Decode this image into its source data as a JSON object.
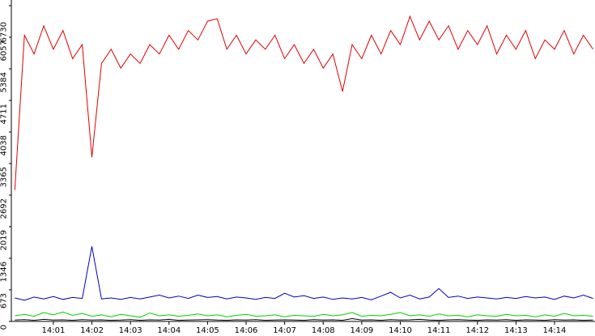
{
  "chart_data": {
    "type": "line",
    "x": [
      0,
      0.25,
      0.5,
      0.75,
      1,
      1.25,
      1.5,
      1.75,
      2,
      2.25,
      2.5,
      2.75,
      3,
      3.25,
      3.5,
      3.75,
      4,
      4.25,
      4.5,
      4.75,
      5,
      5.25,
      5.5,
      5.75,
      6,
      6.25,
      6.5,
      6.75,
      7,
      7.25,
      7.5,
      7.75,
      8,
      8.25,
      8.5,
      8.75,
      9,
      9.25,
      9.5,
      9.75,
      10,
      10.25,
      10.5,
      10.75,
      11,
      11.25,
      11.5,
      11.75,
      12,
      12.25,
      12.5,
      12.75,
      13,
      13.25,
      13.5,
      13.75,
      14,
      14.25,
      14.5,
      14.75,
      15
    ],
    "series": [
      {
        "color": "#e00000",
        "values": [
          2800,
          6100,
          5700,
          6300,
          5800,
          6200,
          5600,
          5900,
          3500,
          5500,
          5800,
          5400,
          5700,
          5500,
          5900,
          5700,
          6100,
          5800,
          6200,
          6000,
          6400,
          6450,
          5800,
          6100,
          5700,
          6000,
          5800,
          6100,
          5600,
          5900,
          5500,
          5800,
          5400,
          5700,
          4900,
          5900,
          5600,
          6100,
          5700,
          6200,
          5900,
          6500,
          6000,
          6400,
          6000,
          6300,
          5800,
          6200,
          5900,
          6300,
          5700,
          6100,
          5800,
          6200,
          5600,
          6000,
          5800,
          6200,
          5700,
          6100,
          5800
        ]
      },
      {
        "color": "#0000c0",
        "values": [
          500,
          450,
          520,
          480,
          530,
          470,
          510,
          490,
          1600,
          480,
          500,
          470,
          510,
          480,
          520,
          560,
          500,
          540,
          490,
          560,
          510,
          530,
          480,
          520,
          500,
          470,
          510,
          490,
          600,
          520,
          550,
          490,
          520,
          470,
          500,
          480,
          510,
          460,
          540,
          620,
          500,
          560,
          480,
          520,
          700,
          510,
          540,
          490,
          520,
          500,
          480,
          510,
          490,
          530,
          500,
          520,
          470,
          540,
          500,
          560,
          490
        ]
      },
      {
        "color": "#00d000",
        "values": [
          120,
          150,
          110,
          190,
          140,
          200,
          130,
          170,
          110,
          140,
          100,
          150,
          120,
          90,
          180,
          120,
          140,
          110,
          130,
          160,
          120,
          140,
          100,
          130,
          150,
          110,
          120,
          140,
          100,
          130,
          120,
          110,
          150,
          120,
          140,
          190,
          110,
          130,
          120,
          150,
          190,
          120,
          140,
          110,
          160,
          120,
          130,
          100,
          140,
          120,
          110,
          150,
          120,
          130,
          100,
          140,
          110,
          170,
          120,
          130,
          110
        ]
      },
      {
        "color": "#000000",
        "values": [
          30,
          40,
          25,
          45,
          30,
          35,
          25,
          40,
          30,
          35,
          25,
          30,
          40,
          25,
          35,
          30,
          45,
          25,
          30,
          35,
          40,
          30,
          25,
          35,
          30,
          40,
          25,
          30,
          35,
          30,
          25,
          40,
          30,
          35,
          25,
          60,
          30,
          35,
          25,
          40,
          30,
          35,
          45,
          30,
          25,
          35,
          40,
          30,
          25,
          35,
          30,
          40,
          25,
          35,
          30,
          25,
          40,
          30,
          35,
          25,
          30
        ]
      }
    ],
    "xlim": [
      -0.09,
      15.05
    ],
    "xticks": [
      {
        "value": 1,
        "label": "14:01"
      },
      {
        "value": 2,
        "label": "14:02"
      },
      {
        "value": 3,
        "label": "14:03"
      },
      {
        "value": 4,
        "label": "14:04"
      },
      {
        "value": 5,
        "label": "14:05"
      },
      {
        "value": 6,
        "label": "14:06"
      },
      {
        "value": 7,
        "label": "14:07"
      },
      {
        "value": 8,
        "label": "14:08"
      },
      {
        "value": 9,
        "label": "14:09"
      },
      {
        "value": 10,
        "label": "14:10"
      },
      {
        "value": 11,
        "label": "14:11"
      },
      {
        "value": 12,
        "label": "14:12"
      },
      {
        "value": 13,
        "label": "14:13"
      },
      {
        "value": 14,
        "label": "14:14"
      }
    ],
    "ylim": [
      0,
      6730
    ],
    "yticks": [
      0,
      673,
      1346,
      2019,
      2692,
      3365,
      4038,
      4711,
      5384,
      6057,
      6730
    ]
  }
}
